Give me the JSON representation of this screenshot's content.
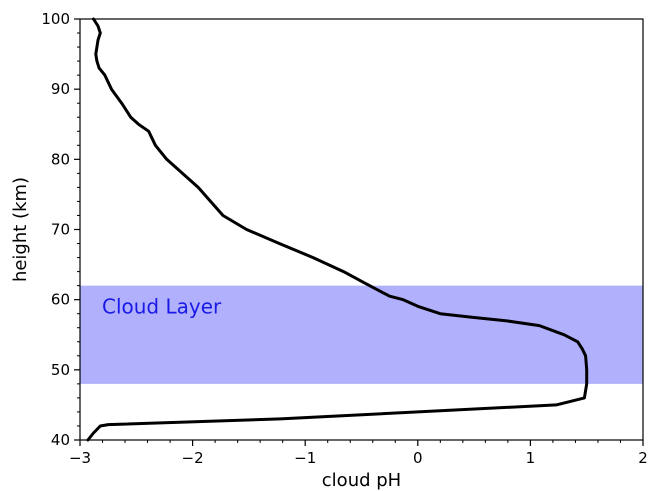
{
  "chart_data": {
    "type": "line",
    "xlabel": "cloud pH",
    "ylabel": "height (km)",
    "xlim": [
      -3,
      2
    ],
    "ylim": [
      40,
      100
    ],
    "x_ticks": [
      -3,
      -2,
      -1,
      0,
      1,
      2
    ],
    "x_tick_labels": [
      "−3",
      "−2",
      "−1",
      "0",
      "1",
      "2"
    ],
    "y_ticks": [
      40,
      50,
      60,
      70,
      80,
      90,
      100
    ],
    "y_tick_labels": [
      "40",
      "50",
      "60",
      "70",
      "80",
      "90",
      "100"
    ],
    "grid": false,
    "series": [
      {
        "color": "#000000",
        "x": [
          -2.88,
          -2.84,
          -2.82,
          -2.84,
          -2.85,
          -2.86,
          -2.85,
          -2.83,
          -2.78,
          -2.72,
          -2.63,
          -2.55,
          -2.48,
          -2.39,
          -2.33,
          -2.23,
          -2.09,
          -1.95,
          -1.73,
          -1.52,
          -1.23,
          -0.93,
          -0.66,
          -0.43,
          -0.25,
          -0.13,
          0.01,
          0.2,
          0.48,
          0.78,
          1.08,
          1.3,
          1.42,
          1.46,
          1.49,
          1.5,
          1.5,
          1.48,
          1.23,
          -1.22,
          -2.75,
          -2.82,
          -2.88,
          -2.93
        ],
        "y": [
          100,
          99,
          98,
          97,
          96,
          95,
          94,
          93,
          92,
          90,
          88,
          86,
          85,
          84,
          82,
          80,
          78,
          76,
          72,
          70,
          68,
          66,
          64,
          62,
          60.5,
          60,
          59,
          58,
          57.5,
          57,
          56.3,
          55,
          54,
          53,
          52,
          50,
          48,
          46,
          45,
          43,
          42.2,
          42,
          41,
          40
        ]
      }
    ],
    "bands": [
      {
        "label": "Cloud Layer",
        "y_range": [
          48,
          62
        ],
        "color": "#b1b0fd",
        "label_color": "#1a1ae6"
      }
    ],
    "line_color": "#000000"
  }
}
